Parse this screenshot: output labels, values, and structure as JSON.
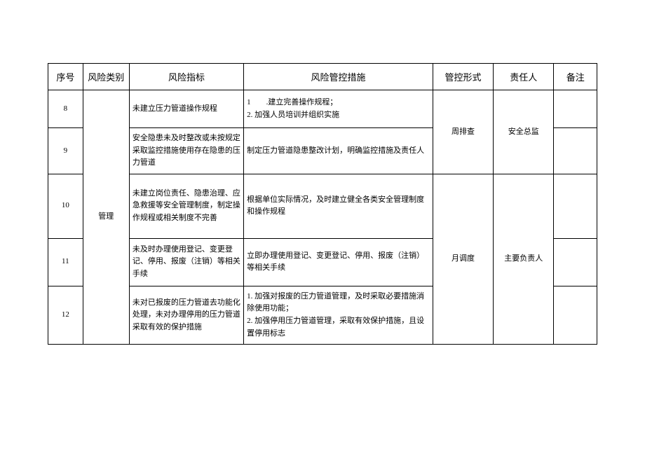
{
  "table": {
    "headers": {
      "seq": "序号",
      "category": "风险类别",
      "indicator": "风险指标",
      "measures": "风险管控措施",
      "form": "管控形式",
      "person": "责任人",
      "remark": "备注"
    },
    "rows": [
      {
        "seq": "8",
        "indicator": "未建立压力管道操作规程",
        "measures": "1　　.建立完善操作规程；\n2. 加强人员培训并组织实施"
      },
      {
        "seq": "9",
        "indicator": "安全隐患未及时整改或未按规定采取监控措施使用存在隐患的压力管道",
        "measures": "制定压力管道隐患整改计划，明确监控措施及责任人"
      },
      {
        "seq": "10",
        "indicator": "未建立岗位责任、隐患治理、应急救援等安全管理制度，制定操作规程或相关制度不完善",
        "measures": "根据单位实际情况，及时建立健全各类安全管理制度和操作规程"
      },
      {
        "seq": "11",
        "indicator": "未及时办理使用登记、变更登记、停用、报废（注销）等相关手续",
        "measures": "立即办理使用登记、变更登记、停用、报废（注销）等相关手续"
      },
      {
        "seq": "12",
        "indicator": "未对已报废的压力管道去功能化处理，未对办理停用的压力管道采取有效的保护措施",
        "measures": "1. 加强对报废的压力管道管理，及时采取必要措施消除使用功能；\n2. 加强停用压力管道管理，采取有效保护措施，且设置停用标志"
      }
    ],
    "merged": {
      "category": "管理",
      "form1": "周排查",
      "person1": "安全总监",
      "form2": "月调度",
      "person2": "主要负责人"
    },
    "styling": {
      "border_color": "#000000",
      "background_color": "#ffffff",
      "header_fontsize": 13,
      "cell_fontsize": 11,
      "font_family": "SimSun"
    }
  }
}
